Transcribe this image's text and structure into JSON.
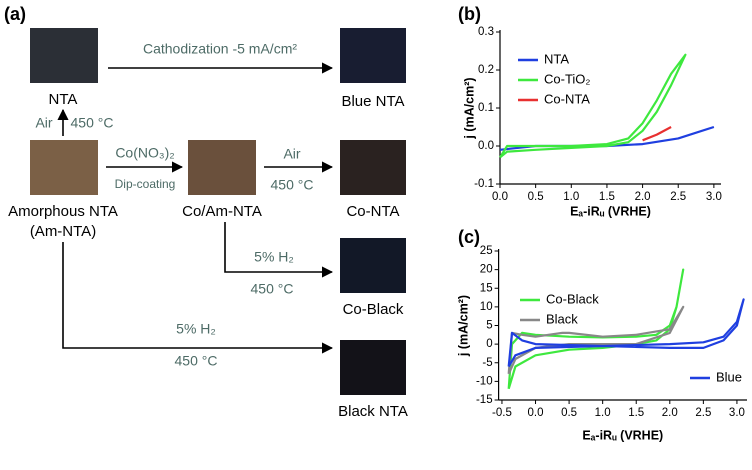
{
  "diagram": {
    "panel": "(a)",
    "nodes": [
      "NTA",
      "Blue NTA",
      "Amorphous NTA",
      "(Am-NTA)",
      "Co/Am-NTA",
      "Co-NTA",
      "Co-Black",
      "Black NTA"
    ],
    "edges": [
      "Cathodization -5 mA/cm²",
      "Air",
      "450 °C",
      "Co(NO₃)₂",
      "Dip-coating",
      "Air",
      "450 °C",
      "5% H₂",
      "450 °C",
      "5% H₂",
      "450 °C"
    ]
  },
  "chart_data": [
    {
      "type": "line",
      "panel": "(b)",
      "xlabel": "Eₐ-iRᵤ (VRHE)",
      "ylabel": "j (mA/cm²)",
      "xlim": [
        0,
        3.1
      ],
      "ylim": [
        -0.1,
        0.3
      ],
      "xticks": [
        {
          "value": 0,
          "label": "0.0"
        },
        0.5,
        {
          "value": 1,
          "label": "1.0"
        },
        1.5,
        {
          "value": 2,
          "label": "2.0"
        },
        2.5,
        {
          "value": 3,
          "label": "3.0"
        }
      ],
      "yticks": [
        -0.1,
        {
          "value": 0,
          "label": "0.0"
        },
        0.1,
        0.2,
        0.3
      ],
      "series": [
        {
          "name": "NTA",
          "color": "#1f3fe0",
          "legend": "upper left",
          "x": [
            0,
            0.5,
            1,
            1.5,
            2,
            2.5,
            3
          ],
          "values": [
            -0.01,
            0,
            0,
            0,
            0.005,
            0.02,
            0.05
          ]
        },
        {
          "name": "Co-TiO₂",
          "color": "#3ee83e",
          "legend": "upper left",
          "x": [
            0,
            0.1,
            0.5,
            1,
            1.5,
            1.8,
            2,
            2.2,
            2.4,
            2.6,
            2.6,
            2.4,
            2.2,
            2,
            1.8,
            1.5,
            1,
            0.5,
            0.1,
            0
          ],
          "values": [
            -0.03,
            -0.015,
            -0.01,
            -0.005,
            0,
            0.01,
            0.04,
            0.09,
            0.16,
            0.24,
            0.24,
            0.19,
            0.12,
            0.06,
            0.02,
            0.005,
            0,
            0,
            0,
            -0.03
          ]
        },
        {
          "name": "Co-NTA",
          "color": "#e83030",
          "legend": "upper left",
          "x": [
            2,
            2.2,
            2.4
          ],
          "values": [
            0.015,
            0.03,
            0.05
          ]
        }
      ]
    },
    {
      "type": "line",
      "panel": "(c)",
      "xlabel": "Eₐ-iRᵤ (VRHE)",
      "ylabel": "j (mA/cm²)",
      "xlim": [
        -0.55,
        3.15
      ],
      "ylim": [
        -15,
        25
      ],
      "xticks": [
        -0.5,
        {
          "value": 0,
          "label": "0.0"
        },
        0.5,
        {
          "value": 1,
          "label": "1.0"
        },
        1.5,
        {
          "value": 2,
          "label": "2.0"
        },
        2.5,
        {
          "value": 3,
          "label": "3.0"
        }
      ],
      "yticks": [
        -15,
        -10,
        -5,
        0,
        5,
        10,
        15,
        20,
        25
      ],
      "series": [
        {
          "name": "Co-Black",
          "color": "#3ee83e",
          "legend": "upper left",
          "x": [
            -0.4,
            -0.3,
            0,
            0.5,
            1,
            1.5,
            1.8,
            2,
            2.1,
            2.2,
            2.2,
            2.1,
            2,
            1.8,
            1.5,
            1,
            0.5,
            0,
            -0.2,
            -0.35,
            -0.4
          ],
          "values": [
            -12,
            -6,
            -3,
            -1.5,
            -1,
            0,
            1,
            4,
            10,
            20,
            20,
            10,
            5,
            2.5,
            2,
            1.8,
            2,
            2.5,
            3,
            0,
            -12
          ]
        },
        {
          "name": "Black",
          "color": "#888888",
          "legend": "upper left",
          "x": [
            -0.4,
            -0.3,
            0,
            0.5,
            1,
            1.5,
            2,
            2.2,
            2.2,
            2,
            1.5,
            1,
            0.5,
            0.4,
            0,
            -0.2,
            -0.35,
            -0.4
          ],
          "values": [
            -8,
            -4,
            -1,
            0,
            0,
            0,
            3,
            10,
            10,
            4,
            2.5,
            2,
            3,
            3,
            2,
            2.5,
            3,
            -8
          ]
        },
        {
          "name": "Blue",
          "color": "#1f3fe0",
          "legend": "lower right",
          "x": [
            -0.4,
            -0.3,
            0,
            1,
            2,
            2.5,
            2.8,
            3,
            3.1,
            3.1,
            3,
            2.8,
            2.5,
            2,
            1,
            0,
            -0.2,
            -0.35,
            -0.4
          ],
          "values": [
            -6,
            -3,
            -1,
            -0.5,
            0,
            0.5,
            2,
            6,
            12,
            12,
            5,
            1,
            -1,
            -1,
            -0.5,
            0,
            1,
            3,
            -6
          ]
        }
      ]
    }
  ]
}
